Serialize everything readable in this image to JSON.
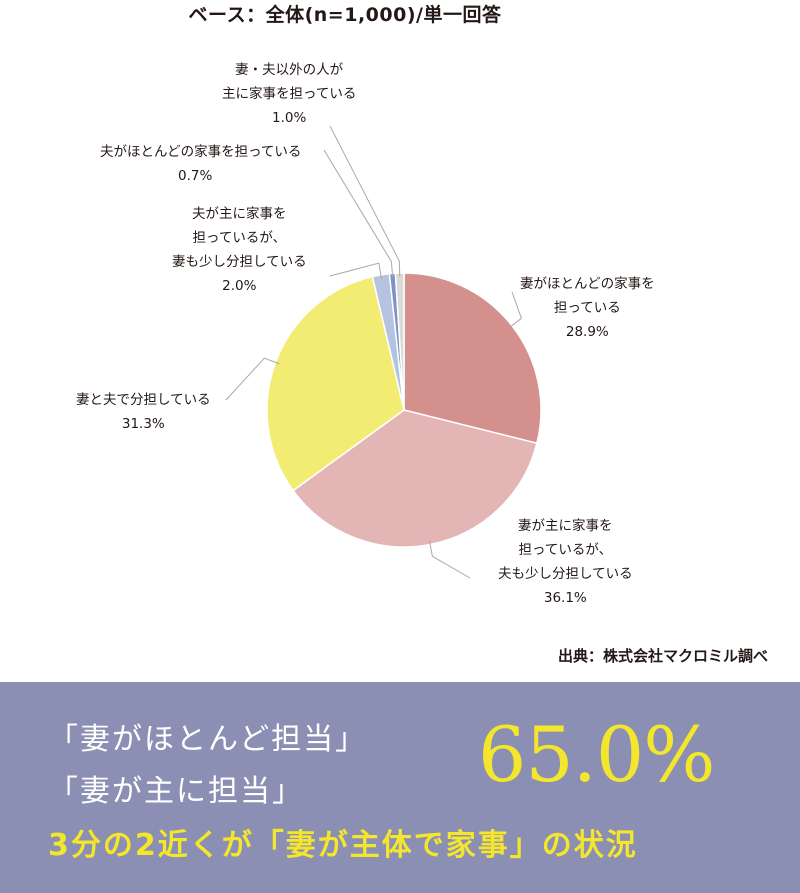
{
  "chart_data": {
    "type": "pie",
    "subtitle": "ベース：全体(n=1,000)/単一回答",
    "slices": [
      {
        "label_lines": [
          "妻がほとんどの家事を",
          "担っている"
        ],
        "value": 28.9,
        "value_text": "28.9%",
        "color": "#d4908d"
      },
      {
        "label_lines": [
          "妻が主に家事を",
          "担っているが、",
          "夫も少し分担している"
        ],
        "value": 36.1,
        "value_text": "36.1%",
        "color": "#e3b5b5"
      },
      {
        "label_lines": [
          "妻と夫で分担している"
        ],
        "value": 31.3,
        "value_text": "31.3%",
        "color": "#f3ec72"
      },
      {
        "label_lines": [
          "夫が主に家事を",
          "担っているが、",
          "妻も少し分担している"
        ],
        "value": 2.0,
        "value_text": "2.0%",
        "color": "#b4c4e0"
      },
      {
        "label_lines": [
          "夫がほとんどの家事を担っている"
        ],
        "value": 0.7,
        "value_text": "0.7%",
        "color": "#7e93c3"
      },
      {
        "label_lines": [
          "妻・夫以外の人が",
          "主に家事を担っている"
        ],
        "value": 1.0,
        "value_text": "1.0%",
        "color": "#d9d9d9"
      }
    ],
    "source": "出典：株式会社マクロミル調べ"
  },
  "summary": {
    "quote1": "「妻がほとんど担当」",
    "quote2": "「妻が主に担当」",
    "percent": "65.0%",
    "conclusion": "3分の2近くが「妻が主体で家事」の状況"
  }
}
